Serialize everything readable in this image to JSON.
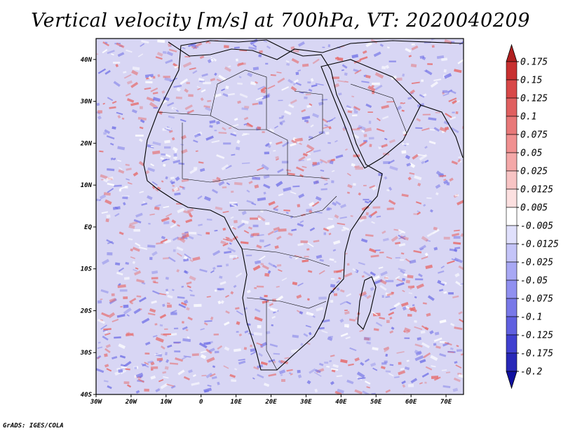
{
  "title": "Vertical velocity [m/s] at 700hPa, VT: 2020040209",
  "footer": "GrADS: IGES/COLA",
  "map": {
    "lat_labels": [
      "40N",
      "30N",
      "20N",
      "10N",
      "EQ",
      "10S",
      "20S",
      "30S",
      "40S"
    ],
    "lat_values": [
      40,
      30,
      20,
      10,
      0,
      -10,
      -20,
      -30,
      -40
    ],
    "lon_labels": [
      "30W",
      "20W",
      "10W",
      "0",
      "10E",
      "20E",
      "30E",
      "40E",
      "50E",
      "60E",
      "70E"
    ],
    "lon_values": [
      -30,
      -20,
      -10,
      0,
      10,
      20,
      30,
      40,
      50,
      60,
      70
    ],
    "lon_range": [
      -30,
      75
    ],
    "lat_range": [
      -40,
      45
    ],
    "upward_color": "#e66a6a",
    "downward_color": "#7070e6"
  },
  "colorbar": {
    "labels": [
      "0.175",
      "0.15",
      "0.125",
      "0.1",
      "0.075",
      "0.05",
      "0.025",
      "0.0125",
      "0.005",
      "-0.005",
      "-0.0125",
      "-0.025",
      "-0.05",
      "-0.075",
      "-0.1",
      "-0.125",
      "-0.175",
      "-0.2"
    ],
    "colors": [
      "#b02020",
      "#c83030",
      "#d84848",
      "#e06060",
      "#e87878",
      "#f09090",
      "#f4a8a8",
      "#f8c4c4",
      "#fce0e0",
      "#ffffff",
      "#e0e0fc",
      "#c4c4f8",
      "#a8a8f4",
      "#9090f0",
      "#7878e8",
      "#6060e0",
      "#4040d0",
      "#2828b8",
      "#1010a0"
    ]
  }
}
